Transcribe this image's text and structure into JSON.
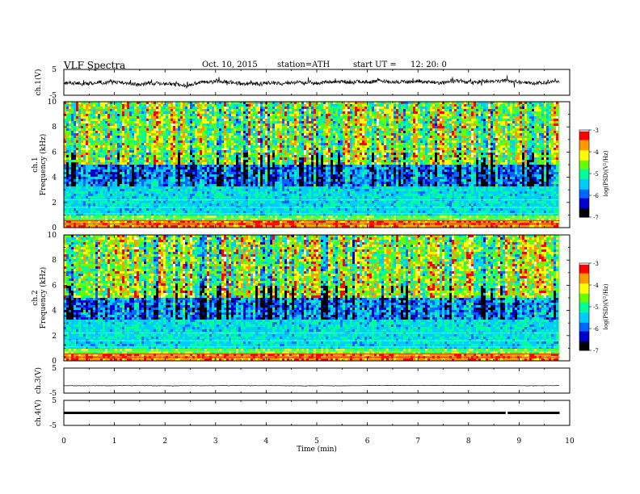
{
  "header": {
    "title": "VLF  Spectra",
    "date": "Oct. 10, 2015",
    "station": "station=ATH",
    "start_label": "start  UT  =",
    "start_value": "12: 20: 0"
  },
  "chart_data": [
    {
      "type": "line",
      "panel": "ch1-waveform",
      "ylabel": "ch.1(V)",
      "ylim": [
        -5,
        5
      ],
      "y_ticks": [
        "5",
        "-5"
      ],
      "xlim": [
        0,
        10
      ],
      "series": [
        {
          "x_range": [
            0,
            9.8
          ],
          "baseline": 0,
          "amplitude": 1.2,
          "color": "#000000"
        }
      ]
    },
    {
      "type": "heatmap",
      "panel": "ch1-spectrogram",
      "ylabel": "ch.1\nFrequency  (kHz)",
      "ylim": [
        0,
        10
      ],
      "y_ticks": [
        "0",
        "2",
        "4",
        "6",
        "8",
        "10"
      ],
      "xlim": [
        0,
        10
      ],
      "data_x_range": [
        0,
        9.8
      ],
      "colorbar": {
        "label": "log(PSD)(V²/Hz)",
        "range": [
          -7,
          -3
        ],
        "ticks": [
          "-3",
          "-4",
          "-5",
          "-6",
          "-7"
        ]
      }
    },
    {
      "type": "heatmap",
      "panel": "ch2-spectrogram",
      "ylabel": "ch.2\nFrequency  (kHz)",
      "ylim": [
        0,
        10
      ],
      "y_ticks": [
        "0",
        "2",
        "4",
        "6",
        "8",
        "10"
      ],
      "xlim": [
        0,
        10
      ],
      "data_x_range": [
        0,
        9.8
      ],
      "colorbar": {
        "label": "log(PSD)(V²/Hz)",
        "range": [
          -7,
          -3
        ],
        "ticks": [
          "-3",
          "-4",
          "-5",
          "-6",
          "-7"
        ]
      }
    },
    {
      "type": "line",
      "panel": "ch3-waveform",
      "ylabel": "ch.3(V)",
      "ylim": [
        -5,
        5
      ],
      "y_ticks": [
        "5",
        "-5"
      ],
      "xlim": [
        0,
        10
      ],
      "series": [
        {
          "x_range": [
            0,
            9.8
          ],
          "baseline": -2,
          "amplitude": 0.1,
          "color": "#000000"
        }
      ]
    },
    {
      "type": "line",
      "panel": "ch4-waveform",
      "ylabel": "ch.4(V)",
      "ylim": [
        -5,
        5
      ],
      "y_ticks": [
        "5",
        "-5"
      ],
      "xlim": [
        0,
        10
      ],
      "series": [
        {
          "x_range": [
            0,
            9.8
          ],
          "baseline": 0,
          "amplitude": 0.3,
          "gap_at": 8.75,
          "color": "#000000"
        }
      ]
    }
  ],
  "x_axis": {
    "label": "Time  (min)",
    "ticks": [
      "0",
      "1",
      "2",
      "3",
      "4",
      "5",
      "6",
      "7",
      "8",
      "9",
      "10"
    ]
  },
  "colors": {
    "jet": [
      "#000000",
      "#0000cc",
      "#0066ff",
      "#00ccff",
      "#00ff99",
      "#66ff00",
      "#ffff00",
      "#ff9900",
      "#ff0000",
      "#ffffff"
    ]
  }
}
